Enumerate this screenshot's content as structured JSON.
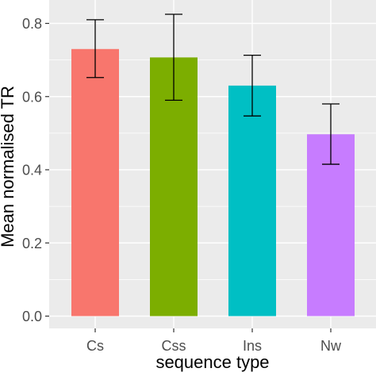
{
  "chart_data": {
    "type": "bar",
    "categories": [
      "Cs",
      "Css",
      "Ins",
      "Nw"
    ],
    "values": [
      0.73,
      0.707,
      0.63,
      0.497
    ],
    "error_low": [
      0.652,
      0.59,
      0.547,
      0.415
    ],
    "error_high": [
      0.81,
      0.825,
      0.713,
      0.58
    ],
    "colors": [
      "#F8766D",
      "#7CAE00",
      "#00BFC4",
      "#C77CFF"
    ],
    "xlabel": "sequence type",
    "ylabel": "Mean normalised TR",
    "ylim": [
      0,
      0.85
    ],
    "yticks": [
      0.0,
      0.2,
      0.4,
      0.6,
      0.8
    ],
    "ytick_labels": [
      "0.0",
      "0.2",
      "0.4",
      "0.6",
      "0.8"
    ],
    "grid": true,
    "panel_background": "#EBEBEB"
  }
}
